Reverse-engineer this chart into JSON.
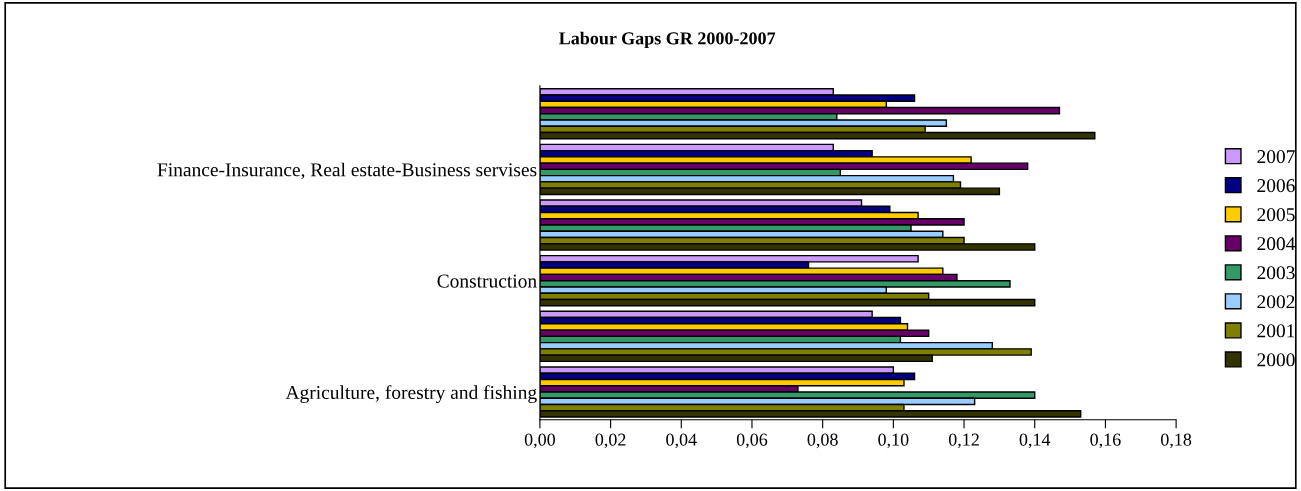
{
  "chart_data": {
    "type": "bar",
    "orientation": "horizontal",
    "title": "Labour Gaps GR 2000-2007",
    "categories": [
      null,
      "Finance-Insurance, Real estate-Business servises",
      null,
      "Construction",
      null,
      "Agriculture, forestry and fishing"
    ],
    "series": [
      {
        "name": "2007",
        "color": "#cc99ff",
        "values": [
          0.083,
          0.083,
          0.091,
          0.107,
          0.094,
          0.1
        ]
      },
      {
        "name": "2006",
        "color": "#000080",
        "values": [
          0.106,
          0.094,
          0.099,
          0.076,
          0.102,
          0.106
        ]
      },
      {
        "name": "2005",
        "color": "#ffcc00",
        "values": [
          0.098,
          0.122,
          0.107,
          0.114,
          0.104,
          0.103
        ]
      },
      {
        "name": "2004",
        "color": "#660066",
        "values": [
          0.147,
          0.138,
          0.12,
          0.118,
          0.11,
          0.073
        ]
      },
      {
        "name": "2003",
        "color": "#339966",
        "values": [
          0.084,
          0.085,
          0.105,
          0.133,
          0.102,
          0.14
        ]
      },
      {
        "name": "2002",
        "color": "#99ccff",
        "values": [
          0.115,
          0.117,
          0.114,
          0.098,
          0.128,
          0.123
        ]
      },
      {
        "name": "2001",
        "color": "#808000",
        "values": [
          0.109,
          0.119,
          0.12,
          0.11,
          0.139,
          0.103
        ]
      },
      {
        "name": "2000",
        "color": "#333300",
        "values": [
          0.157,
          0.13,
          0.14,
          0.14,
          0.111,
          0.153
        ]
      }
    ],
    "xlim": [
      0,
      0.18
    ],
    "xticks": [
      {
        "value": 0,
        "label": "0,00"
      },
      {
        "value": 0.02,
        "label": "0,02"
      },
      {
        "value": 0.04,
        "label": "0,04"
      },
      {
        "value": 0.06,
        "label": "0,06"
      },
      {
        "value": 0.08,
        "label": "0,08"
      },
      {
        "value": 0.1,
        "label": "0,10"
      },
      {
        "value": 0.12,
        "label": "0,12"
      },
      {
        "value": 0.14,
        "label": "0,14"
      },
      {
        "value": 0.16,
        "label": "0,16"
      },
      {
        "value": 0.18,
        "label": "0,18"
      }
    ],
    "grid": false,
    "legend": "right"
  }
}
